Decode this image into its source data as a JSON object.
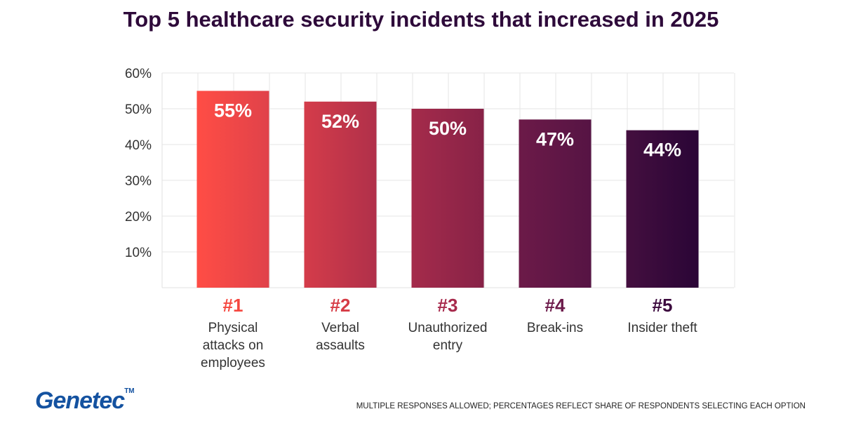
{
  "chart_data": {
    "type": "bar",
    "title": "Top 5 healthcare security incidents that increased in 2025",
    "categories": [
      {
        "rank": "#1",
        "label": [
          "Physical",
          "attacks on",
          "employees"
        ]
      },
      {
        "rank": "#2",
        "label": [
          "Verbal",
          "assaults"
        ]
      },
      {
        "rank": "#3",
        "label": [
          "Unauthorized",
          "entry"
        ]
      },
      {
        "rank": "#4",
        "label": [
          "Break-ins"
        ]
      },
      {
        "rank": "#5",
        "label": [
          "Insider theft"
        ]
      }
    ],
    "values": [
      55,
      52,
      50,
      47,
      44
    ],
    "data_labels": [
      "55%",
      "52%",
      "50%",
      "47%",
      "44%"
    ],
    "ylim": [
      0,
      60
    ],
    "yticks": [
      "10%",
      "20%",
      "30%",
      "40%",
      "50%",
      "60%"
    ],
    "grid": true,
    "colors": [
      [
        "#ff4d45",
        "#e0424a"
      ],
      [
        "#d43c4a",
        "#b0304a"
      ],
      [
        "#a52b4b",
        "#872247"
      ],
      [
        "#6c1a48",
        "#561444"
      ],
      [
        "#440f3f",
        "#2a0536"
      ]
    ],
    "rank_colors": [
      "#f5473f",
      "#d63b45",
      "#a72a4c",
      "#6c1a4a",
      "#3c0a3e"
    ]
  },
  "logo": "Genetec",
  "footnote": "MULTIPLE RESPONSES ALLOWED; PERCENTAGES REFLECT SHARE OF RESPONDENTS SELECTING EACH OPTION"
}
